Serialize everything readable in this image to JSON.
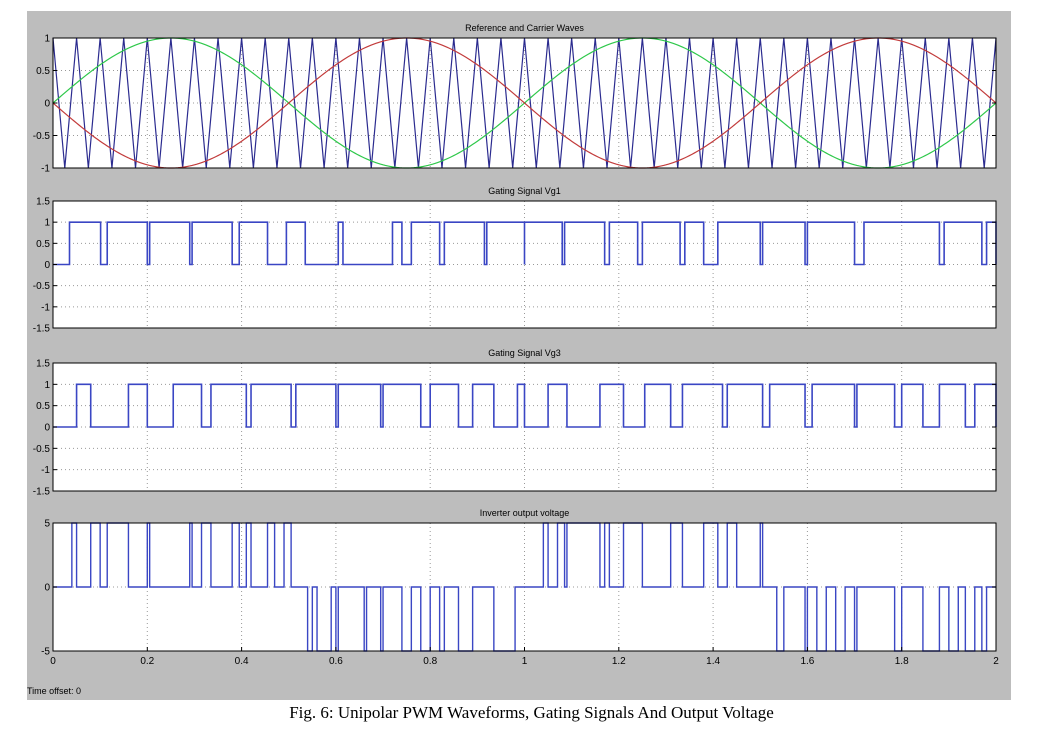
{
  "caption": "Fig.  6: Unipolar PWM Waveforms, Gating Signals And Output Voltage",
  "time_offset_label": "Time offset:  0",
  "colors": {
    "background": "#bdbdbd",
    "plot_bg": "#ffffff",
    "carrier": "#2b2b8f",
    "ref_positive": "#2ec84a",
    "ref_negative": "#c23b3b",
    "gate": "#3a46c4",
    "output": "#3a46c4",
    "grid": "#999999"
  },
  "chart_data": [
    {
      "type": "line",
      "title": "Reference and Carrier Waves",
      "xlim": [
        0,
        2
      ],
      "ylim": [
        -1,
        1
      ],
      "yticks": [
        "1",
        "0.5",
        "0",
        "-0.5",
        "-1"
      ],
      "ytick_values": [
        1,
        0.5,
        0,
        -0.5,
        -1
      ],
      "xticks": [],
      "grid": true,
      "series": [
        {
          "role": "carrier",
          "waveform": "triangle",
          "frequency": 20,
          "amplitude": 1,
          "color_key": "carrier"
        },
        {
          "role": "reference",
          "waveform": "sine",
          "frequency": 1,
          "amplitude": 1,
          "phase_deg": 0,
          "color_key": "ref_positive"
        },
        {
          "role": "reference",
          "waveform": "sine",
          "frequency": 1,
          "amplitude": 1,
          "phase_deg": 180,
          "color_key": "ref_negative"
        }
      ]
    },
    {
      "type": "line",
      "title": "Gating Signal Vg1",
      "xlim": [
        0,
        2
      ],
      "ylim": [
        -1.5,
        1.5
      ],
      "yticks": [
        "1.5",
        "1",
        "0.5",
        "0",
        "-0.5",
        "-1",
        "-1.5"
      ],
      "ytick_values": [
        1.5,
        1,
        0.5,
        0,
        -0.5,
        -1,
        -1.5
      ],
      "xticks": [],
      "grid": true,
      "step": true,
      "high": 1,
      "low": 0,
      "intervals_high": [
        [
          0.035,
          0.101
        ],
        [
          0.115,
          0.2
        ],
        [
          0.205,
          0.29
        ],
        [
          0.295,
          0.38
        ],
        [
          0.395,
          0.455
        ],
        [
          0.495,
          0.535
        ],
        [
          0.605,
          0.615
        ],
        [
          0.72,
          0.74
        ],
        [
          0.76,
          0.82
        ],
        [
          0.83,
          0.915
        ],
        [
          0.92,
          1.0
        ],
        [
          1.0,
          1.08
        ],
        [
          1.085,
          1.17
        ],
        [
          1.18,
          1.24
        ],
        [
          1.25,
          1.33
        ],
        [
          1.34,
          1.38
        ],
        [
          1.41,
          1.5
        ],
        [
          1.505,
          1.595
        ],
        [
          1.6,
          1.7
        ],
        [
          1.72,
          1.88
        ],
        [
          1.89,
          1.97
        ],
        [
          1.98,
          2.0
        ]
      ]
    },
    {
      "type": "line",
      "title": "Gating Signal Vg3",
      "xlim": [
        0,
        2
      ],
      "ylim": [
        -1.5,
        1.5
      ],
      "yticks": [
        "1.5",
        "1",
        "0.5",
        "0",
        "-0.5",
        "-1",
        "-1.5"
      ],
      "ytick_values": [
        1.5,
        1,
        0.5,
        0,
        -0.5,
        -1,
        -1.5
      ],
      "xticks": [],
      "grid": true,
      "step": true,
      "high": 1,
      "low": 0,
      "intervals_high": [
        [
          0.05,
          0.08
        ],
        [
          0.16,
          0.2
        ],
        [
          0.255,
          0.315
        ],
        [
          0.335,
          0.41
        ],
        [
          0.42,
          0.505
        ],
        [
          0.515,
          0.6
        ],
        [
          0.605,
          0.695
        ],
        [
          0.7,
          0.78
        ],
        [
          0.8,
          0.86
        ],
        [
          0.89,
          0.935
        ],
        [
          0.985,
          1.0
        ],
        [
          1.05,
          1.09
        ],
        [
          1.16,
          1.21
        ],
        [
          1.255,
          1.31
        ],
        [
          1.335,
          1.42
        ],
        [
          1.43,
          1.505
        ],
        [
          1.52,
          1.595
        ],
        [
          1.61,
          1.7
        ],
        [
          1.705,
          1.785
        ],
        [
          1.8,
          1.845
        ],
        [
          1.88,
          1.935
        ],
        [
          1.955,
          2.0
        ]
      ]
    },
    {
      "type": "line",
      "title": "Inverter output voltage",
      "xlim": [
        0,
        2
      ],
      "ylim": [
        -5,
        5
      ],
      "yticks": [
        "5",
        "0",
        "-5"
      ],
      "ytick_values": [
        5,
        0,
        -5
      ],
      "xticks": [
        "0",
        "0.2",
        "0.4",
        "0.6",
        "0.8",
        "1",
        "1.2",
        "1.4",
        "1.6",
        "1.8",
        "2"
      ],
      "xtick_values": [
        0,
        0.2,
        0.4,
        0.6,
        0.8,
        1,
        1.2,
        1.4,
        1.6,
        1.8,
        2
      ],
      "grid": true,
      "step": true,
      "pulses": [
        {
          "x0": 0.04,
          "x1": 0.05,
          "level": 5
        },
        {
          "x0": 0.08,
          "x1": 0.1,
          "level": 5
        },
        {
          "x0": 0.115,
          "x1": 0.16,
          "level": 5
        },
        {
          "x0": 0.2,
          "x1": 0.205,
          "level": 5
        },
        {
          "x0": 0.29,
          "x1": 0.295,
          "level": 5
        },
        {
          "x0": 0.315,
          "x1": 0.335,
          "level": 5
        },
        {
          "x0": 0.38,
          "x1": 0.395,
          "level": 5
        },
        {
          "x0": 0.41,
          "x1": 0.42,
          "level": 5
        },
        {
          "x0": 0.455,
          "x1": 0.47,
          "level": 5
        },
        {
          "x0": 0.49,
          "x1": 0.505,
          "level": 5
        },
        {
          "x0": 0.54,
          "x1": 0.55,
          "level": -5
        },
        {
          "x0": 0.56,
          "x1": 0.59,
          "level": -5
        },
        {
          "x0": 0.6,
          "x1": 0.605,
          "level": -5
        },
        {
          "x0": 0.66,
          "x1": 0.665,
          "level": -5
        },
        {
          "x0": 0.695,
          "x1": 0.7,
          "level": -5
        },
        {
          "x0": 0.74,
          "x1": 0.76,
          "level": -5
        },
        {
          "x0": 0.78,
          "x1": 0.8,
          "level": -5
        },
        {
          "x0": 0.82,
          "x1": 0.83,
          "level": -5
        },
        {
          "x0": 0.86,
          "x1": 0.89,
          "level": -5
        },
        {
          "x0": 0.935,
          "x1": 0.98,
          "level": -5
        },
        {
          "x0": 1.04,
          "x1": 1.05,
          "level": 5
        },
        {
          "x0": 1.07,
          "x1": 1.085,
          "level": 5
        },
        {
          "x0": 1.09,
          "x1": 1.16,
          "level": 5
        },
        {
          "x0": 1.17,
          "x1": 1.18,
          "level": 5
        },
        {
          "x0": 1.21,
          "x1": 1.25,
          "level": 5
        },
        {
          "x0": 1.31,
          "x1": 1.335,
          "level": 5
        },
        {
          "x0": 1.38,
          "x1": 1.41,
          "level": 5
        },
        {
          "x0": 1.43,
          "x1": 1.45,
          "level": 5
        },
        {
          "x0": 1.5,
          "x1": 1.505,
          "level": 5
        },
        {
          "x0": 1.535,
          "x1": 1.55,
          "level": -5
        },
        {
          "x0": 1.595,
          "x1": 1.6,
          "level": -5
        },
        {
          "x0": 1.62,
          "x1": 1.64,
          "level": -5
        },
        {
          "x0": 1.66,
          "x1": 1.68,
          "level": -5
        },
        {
          "x0": 1.7,
          "x1": 1.705,
          "level": -5
        },
        {
          "x0": 1.785,
          "x1": 1.8,
          "level": -5
        },
        {
          "x0": 1.845,
          "x1": 1.88,
          "level": -5
        },
        {
          "x0": 1.9,
          "x1": 1.92,
          "level": -5
        },
        {
          "x0": 1.935,
          "x1": 1.955,
          "level": -5
        },
        {
          "x0": 1.97,
          "x1": 1.98,
          "level": -5
        }
      ]
    }
  ]
}
